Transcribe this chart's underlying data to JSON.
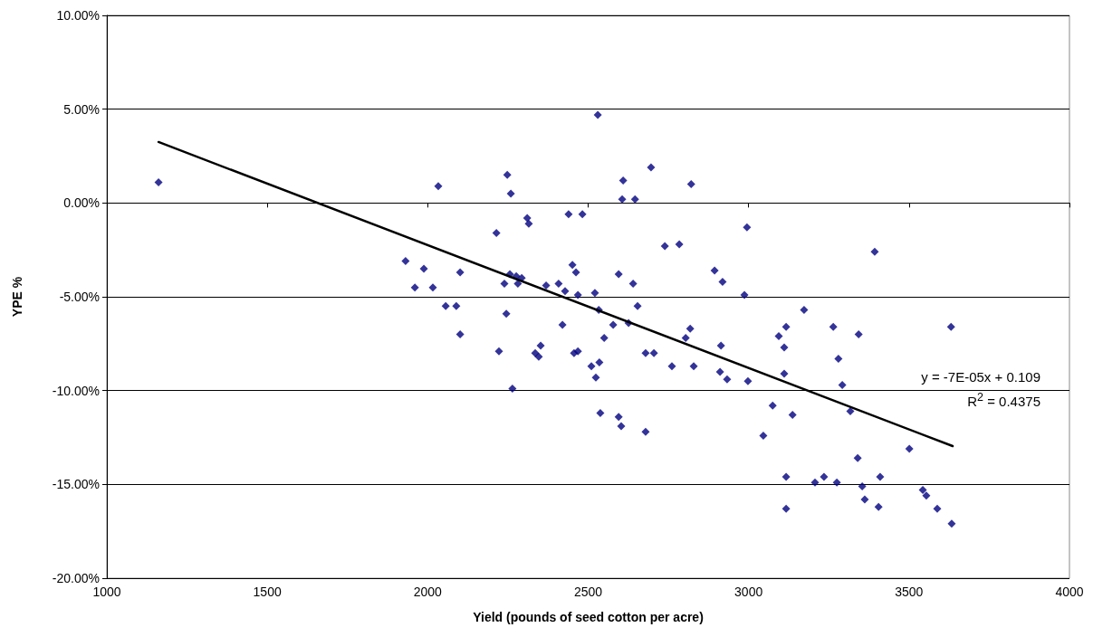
{
  "chart_data": {
    "type": "scatter",
    "xlabel": "Yield (pounds of seed cotton per acre)",
    "ylabel": "YPE %",
    "annotations": [
      "y = -7E-05x + 0.109",
      "R$^{2}$ = 0.4375"
    ],
    "xlim": [
      1000,
      4000
    ],
    "xticks": [
      1000,
      1500,
      2000,
      2500,
      3000,
      3500,
      4000
    ],
    "ylim": [
      -20,
      10
    ],
    "yticks": [
      {
        "value": -20,
        "label": "-20.00%"
      },
      {
        "value": -15,
        "label": "-15.00%"
      },
      {
        "value": -10,
        "label": "-10.00%"
      },
      {
        "value": -5,
        "label": "-5.00%"
      },
      {
        "value": 0,
        "label": "0.00%"
      },
      {
        "value": 5,
        "label": "5.00%"
      },
      {
        "value": 10,
        "label": "10.00%"
      }
    ],
    "grid": "y",
    "marker": "diamond",
    "series": [
      {
        "type": "scatter",
        "color": "#000080",
        "x": [
          1161,
          1931,
          1960,
          1988,
          2016,
          2033,
          2056,
          2089,
          2101,
          2101,
          2214,
          2222,
          2239,
          2245,
          2248,
          2256,
          2259,
          2264,
          2276,
          2281,
          2293,
          2310,
          2315,
          2335,
          2346,
          2352,
          2369,
          2408,
          2420,
          2428,
          2439,
          2451,
          2456,
          2462,
          2468,
          2468,
          2482,
          2510,
          2521,
          2524,
          2530,
          2533,
          2535,
          2538,
          2550,
          2578,
          2595,
          2595,
          2603,
          2606,
          2609,
          2626,
          2640,
          2646,
          2654,
          2679,
          2679,
          2696,
          2705,
          2739,
          2761,
          2784,
          2804,
          2818,
          2821,
          2829,
          2894,
          2911,
          2914,
          2919,
          2933,
          2987,
          2995,
          2998,
          3046,
          3075,
          3094,
          3111,
          3111,
          3117,
          3117,
          3117,
          3137,
          3173,
          3207,
          3235,
          3264,
          3275,
          3280,
          3292,
          3317,
          3340,
          3343,
          3354,
          3362,
          3393,
          3405,
          3410,
          3501,
          3543,
          3554,
          3588,
          3631,
          3633
        ],
        "values": [
          1.1,
          -3.1,
          -4.5,
          -3.5,
          -4.5,
          0.9,
          -5.5,
          -5.5,
          -3.7,
          -7.0,
          -1.6,
          -7.9,
          -4.3,
          -5.9,
          1.5,
          -3.8,
          0.5,
          -9.9,
          -3.9,
          -4.3,
          -4.0,
          -0.8,
          -1.1,
          -8.0,
          -8.2,
          -7.6,
          -4.4,
          -4.3,
          -6.5,
          -4.7,
          -0.6,
          -3.3,
          -8.0,
          -3.7,
          -4.9,
          -7.9,
          -0.6,
          -8.7,
          -4.8,
          -9.3,
          4.7,
          -5.7,
          -8.5,
          -11.2,
          -7.2,
          -6.5,
          -3.8,
          -11.4,
          -11.9,
          0.2,
          1.2,
          -6.4,
          -4.3,
          0.2,
          -5.5,
          -8.0,
          -12.2,
          1.9,
          -8.0,
          -2.3,
          -8.7,
          -2.2,
          -7.2,
          -6.7,
          1.0,
          -8.7,
          -3.6,
          -9.0,
          -7.6,
          -4.2,
          -9.4,
          -4.9,
          -1.3,
          -9.5,
          -12.4,
          -10.8,
          -7.1,
          -9.1,
          -7.7,
          -6.6,
          -14.6,
          -16.3,
          -11.3,
          -5.7,
          -14.9,
          -14.6,
          -6.6,
          -14.9,
          -8.3,
          -9.7,
          -11.1,
          -13.6,
          -7.0,
          -15.1,
          -15.8,
          -2.6,
          -16.2,
          -14.6,
          -13.1,
          -15.3,
          -15.6,
          -16.3,
          -6.6,
          -17.1
        ]
      },
      {
        "type": "line",
        "color": "#000000",
        "marker": "none",
        "x": [
          1161,
          3636
        ],
        "values": [
          3.25,
          -12.96
        ]
      }
    ]
  }
}
